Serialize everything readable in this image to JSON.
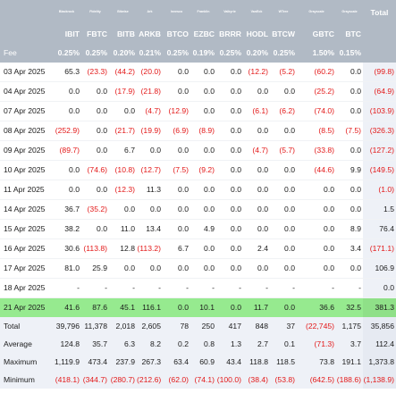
{
  "header": {
    "issuers": [
      "Blackrock",
      "Fidelity",
      "Bitwise",
      "Ark",
      "Invesco",
      "Franklin",
      "Valkyrie",
      "VanEck",
      "WTree",
      "Grayscale",
      "Grayscale"
    ],
    "total_label": "Total",
    "tickers": [
      "IBIT",
      "FBTC",
      "BITB",
      "ARKB",
      "BTCO",
      "EZBC",
      "BRRR",
      "HODL",
      "BTCW",
      "GBTC",
      "BTC"
    ],
    "fee_label": "Fee",
    "fees": [
      "0.25%",
      "0.25%",
      "0.20%",
      "0.21%",
      "0.25%",
      "0.19%",
      "0.25%",
      "0.20%",
      "0.25%",
      "1.50%",
      "0.15%"
    ]
  },
  "days": [
    {
      "date": "03 Apr 2025",
      "values": [
        "65.3",
        "(23.3)",
        "(44.2)",
        "(20.0)",
        "0.0",
        "0.0",
        "0.0",
        "(12.2)",
        "(5.2)",
        "(60.2)",
        "0.0"
      ],
      "total": "(99.8)"
    },
    {
      "date": "04 Apr 2025",
      "values": [
        "0.0",
        "0.0",
        "(17.9)",
        "(21.8)",
        "0.0",
        "0.0",
        "0.0",
        "0.0",
        "0.0",
        "(25.2)",
        "0.0"
      ],
      "total": "(64.9)"
    },
    {
      "date": "07 Apr 2025",
      "values": [
        "0.0",
        "0.0",
        "0.0",
        "(4.7)",
        "(12.9)",
        "0.0",
        "0.0",
        "(6.1)",
        "(6.2)",
        "(74.0)",
        "0.0"
      ],
      "total": "(103.9)"
    },
    {
      "date": "08 Apr 2025",
      "values": [
        "(252.9)",
        "0.0",
        "(21.7)",
        "(19.9)",
        "(6.9)",
        "(8.9)",
        "0.0",
        "0.0",
        "0.0",
        "(8.5)",
        "(7.5)"
      ],
      "total": "(326.3)"
    },
    {
      "date": "09 Apr 2025",
      "values": [
        "(89.7)",
        "0.0",
        "6.7",
        "0.0",
        "0.0",
        "0.0",
        "0.0",
        "(4.7)",
        "(5.7)",
        "(33.8)",
        "0.0"
      ],
      "total": "(127.2)"
    },
    {
      "date": "10 Apr 2025",
      "values": [
        "0.0",
        "(74.6)",
        "(10.8)",
        "(12.7)",
        "(7.5)",
        "(9.2)",
        "0.0",
        "0.0",
        "0.0",
        "(44.6)",
        "9.9"
      ],
      "total": "(149.5)"
    },
    {
      "date": "11 Apr 2025",
      "values": [
        "0.0",
        "0.0",
        "(12.3)",
        "11.3",
        "0.0",
        "0.0",
        "0.0",
        "0.0",
        "0.0",
        "0.0",
        "0.0"
      ],
      "total": "(1.0)"
    },
    {
      "date": "14 Apr 2025",
      "values": [
        "36.7",
        "(35.2)",
        "0.0",
        "0.0",
        "0.0",
        "0.0",
        "0.0",
        "0.0",
        "0.0",
        "0.0",
        "0.0"
      ],
      "total": "1.5"
    },
    {
      "date": "15 Apr 2025",
      "values": [
        "38.2",
        "0.0",
        "11.0",
        "13.4",
        "0.0",
        "4.9",
        "0.0",
        "0.0",
        "0.0",
        "0.0",
        "8.9"
      ],
      "total": "76.4"
    },
    {
      "date": "16 Apr 2025",
      "values": [
        "30.6",
        "(113.8)",
        "12.8",
        "(113.2)",
        "6.7",
        "0.0",
        "0.0",
        "2.4",
        "0.0",
        "0.0",
        "3.4"
      ],
      "total": "(171.1)"
    },
    {
      "date": "17 Apr 2025",
      "values": [
        "81.0",
        "25.9",
        "0.0",
        "0.0",
        "0.0",
        "0.0",
        "0.0",
        "0.0",
        "0.0",
        "0.0",
        "0.0"
      ],
      "total": "106.9"
    },
    {
      "date": "18 Apr 2025",
      "values": [
        "-",
        "-",
        "-",
        "-",
        "-",
        "-",
        "-",
        "-",
        "-",
        "-",
        "-"
      ],
      "total": "0.0"
    }
  ],
  "highlight": {
    "date": "21 Apr 2025",
    "values": [
      "41.6",
      "87.6",
      "45.1",
      "116.1",
      "0.0",
      "10.1",
      "0.0",
      "11.7",
      "0.0",
      "36.6",
      "32.5"
    ],
    "total": "381.3"
  },
  "summary": [
    {
      "label": "Total",
      "values": [
        "39,796",
        "11,378",
        "2,018",
        "2,605",
        "78",
        "250",
        "417",
        "848",
        "37",
        "(22,745)",
        "1,175"
      ],
      "total": "35,856"
    },
    {
      "label": "Average",
      "values": [
        "124.8",
        "35.7",
        "6.3",
        "8.2",
        "0.2",
        "0.8",
        "1.3",
        "2.7",
        "0.1",
        "(71.3)",
        "3.7"
      ],
      "total": "112.4"
    },
    {
      "label": "Maximum",
      "values": [
        "1,119.9",
        "473.4",
        "237.9",
        "267.3",
        "63.4",
        "60.9",
        "43.4",
        "118.8",
        "118.5",
        "73.8",
        "191.1"
      ],
      "total": "1,373.8"
    },
    {
      "label": "Minimum",
      "values": [
        "(418.1)",
        "(344.7)",
        "(280.7)",
        "(212.6)",
        "(62.0)",
        "(74.1)",
        "(100.0)",
        "(38.4)",
        "(53.8)",
        "(642.5)",
        "(188.6)"
      ],
      "total": "(1,138.9)"
    }
  ]
}
